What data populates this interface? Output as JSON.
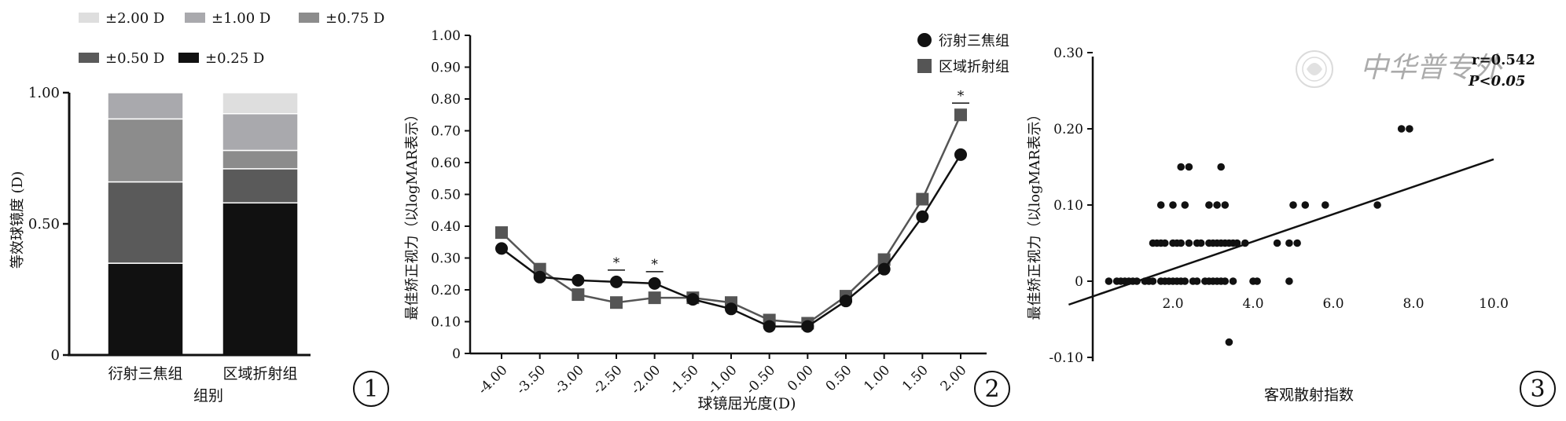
{
  "panels": [
    {
      "panel_label": "1",
      "chart_data": {
        "type": "bar",
        "stacked": true,
        "title": "",
        "xlabel": "组别",
        "ylabel": "等效球镜度 (D)",
        "ylim": [
          0,
          1
        ],
        "yticks": [
          {
            "value": 0,
            "label": "0"
          },
          {
            "value": 0.5,
            "label": "0.50"
          },
          {
            "value": 1,
            "label": "1.00"
          }
        ],
        "categories": [
          "衍射三焦组",
          "区域折射组"
        ],
        "legend_placement": "top-left",
        "series": [
          {
            "name": "±0.25 D",
            "color": "#111111",
            "values": [
              0.35,
              0.58
            ]
          },
          {
            "name": "±0.50 D",
            "color": "#5a5a5a",
            "values": [
              0.31,
              0.13
            ]
          },
          {
            "name": "±0.75 D",
            "color": "#8c8c8c",
            "values": [
              0.24,
              0.07
            ]
          },
          {
            "name": "±1.00 D",
            "color": "#a9a9ad",
            "values": [
              0.1,
              0.14
            ]
          },
          {
            "name": "±2.00 D",
            "color": "#dedede",
            "values": [
              0.0,
              0.08
            ]
          }
        ],
        "legend_rows": [
          [
            "±2.00 D",
            "±1.00 D",
            "±0.75 D"
          ],
          [
            "±0.50 D",
            "±0.25 D"
          ]
        ]
      }
    },
    {
      "panel_label": "2",
      "chart_data": {
        "type": "line",
        "title": "",
        "xlabel": "球镜屈光度(D)",
        "ylabel": "最佳矫正视力（以logMAR表示）",
        "ylim": [
          0,
          1
        ],
        "yticks": [
          "0",
          "0.10",
          "0.20",
          "0.30",
          "0.40",
          "0.50",
          "0.60",
          "0.70",
          "0.80",
          "0.90",
          "1.00"
        ],
        "x": [
          "-4.00",
          "-3.50",
          "-3.00",
          "-2.50",
          "-2.00",
          "-1.50",
          "-1.00",
          "-0.50",
          "0.00",
          "0.50",
          "1.00",
          "1.50",
          "2.00"
        ],
        "legend_placement": "top-right",
        "series": [
          {
            "name": "衍射三焦组",
            "marker": "circle",
            "color": "#111111",
            "values": [
              0.33,
              0.24,
              0.23,
              0.225,
              0.22,
              0.17,
              0.14,
              0.085,
              0.085,
              0.165,
              0.265,
              0.43,
              0.625
            ]
          },
          {
            "name": "区域折射组",
            "marker": "square",
            "color": "#555555",
            "values": [
              0.38,
              0.265,
              0.185,
              0.16,
              0.175,
              0.175,
              0.16,
              0.105,
              0.095,
              0.18,
              0.295,
              0.485,
              0.75
            ]
          }
        ],
        "annotations": [
          {
            "x": "-2.50",
            "text": "*"
          },
          {
            "x": "-2.00",
            "text": "*"
          },
          {
            "x": "2.00",
            "text": "*"
          }
        ]
      }
    },
    {
      "panel_label": "3",
      "chart_data": {
        "type": "scatter",
        "title": "",
        "xlabel": "客观散射指数",
        "ylabel": "最佳矫正视力（以logMAR表示）",
        "xlim": [
          0,
          10
        ],
        "ylim": [
          -0.1,
          0.3
        ],
        "xticks": [
          "2.0",
          "4.0",
          "6.0",
          "8.0",
          "10.0"
        ],
        "yticks": [
          "-0.10",
          "0",
          "0.10",
          "0.20",
          "0.30"
        ],
        "stats": {
          "r": "r=0.542",
          "p": "P<0.05"
        },
        "fit_line": {
          "x": [
            0,
            10
          ],
          "y": [
            -0.02,
            0.16
          ]
        },
        "points": [
          [
            0.4,
            0
          ],
          [
            0.6,
            0
          ],
          [
            0.7,
            0
          ],
          [
            0.8,
            0
          ],
          [
            0.9,
            0
          ],
          [
            1.0,
            0
          ],
          [
            1.1,
            0
          ],
          [
            1.3,
            0
          ],
          [
            1.4,
            0
          ],
          [
            1.5,
            0
          ],
          [
            1.7,
            0
          ],
          [
            1.8,
            0
          ],
          [
            1.9,
            0
          ],
          [
            2.0,
            0
          ],
          [
            2.1,
            0
          ],
          [
            2.2,
            0
          ],
          [
            2.3,
            0
          ],
          [
            2.5,
            0
          ],
          [
            2.6,
            0
          ],
          [
            2.8,
            0
          ],
          [
            2.9,
            0
          ],
          [
            3.0,
            0
          ],
          [
            3.1,
            0
          ],
          [
            3.2,
            0
          ],
          [
            3.3,
            0
          ],
          [
            3.5,
            0
          ],
          [
            4.0,
            0
          ],
          [
            4.1,
            0
          ],
          [
            4.9,
            0
          ],
          [
            1.5,
            0.05
          ],
          [
            1.6,
            0.05
          ],
          [
            1.7,
            0.05
          ],
          [
            1.8,
            0.05
          ],
          [
            2.0,
            0.05
          ],
          [
            2.1,
            0.05
          ],
          [
            2.2,
            0.05
          ],
          [
            2.4,
            0.05
          ],
          [
            2.6,
            0.05
          ],
          [
            2.7,
            0.05
          ],
          [
            2.9,
            0.05
          ],
          [
            3.0,
            0.05
          ],
          [
            3.1,
            0.05
          ],
          [
            3.2,
            0.05
          ],
          [
            3.3,
            0.05
          ],
          [
            3.4,
            0.05
          ],
          [
            3.5,
            0.05
          ],
          [
            3.6,
            0.05
          ],
          [
            3.8,
            0.05
          ],
          [
            4.6,
            0.05
          ],
          [
            4.9,
            0.05
          ],
          [
            5.1,
            0.05
          ],
          [
            1.7,
            0.1
          ],
          [
            2.0,
            0.1
          ],
          [
            2.3,
            0.1
          ],
          [
            2.9,
            0.1
          ],
          [
            3.1,
            0.1
          ],
          [
            3.3,
            0.1
          ],
          [
            5.0,
            0.1
          ],
          [
            5.3,
            0.1
          ],
          [
            5.8,
            0.1
          ],
          [
            7.1,
            0.1
          ],
          [
            2.2,
            0.15
          ],
          [
            2.4,
            0.15
          ],
          [
            3.2,
            0.15
          ],
          [
            7.7,
            0.2
          ],
          [
            7.9,
            0.2
          ],
          [
            3.4,
            -0.08
          ]
        ]
      }
    }
  ],
  "watermark": {
    "text": "中华普专外"
  }
}
